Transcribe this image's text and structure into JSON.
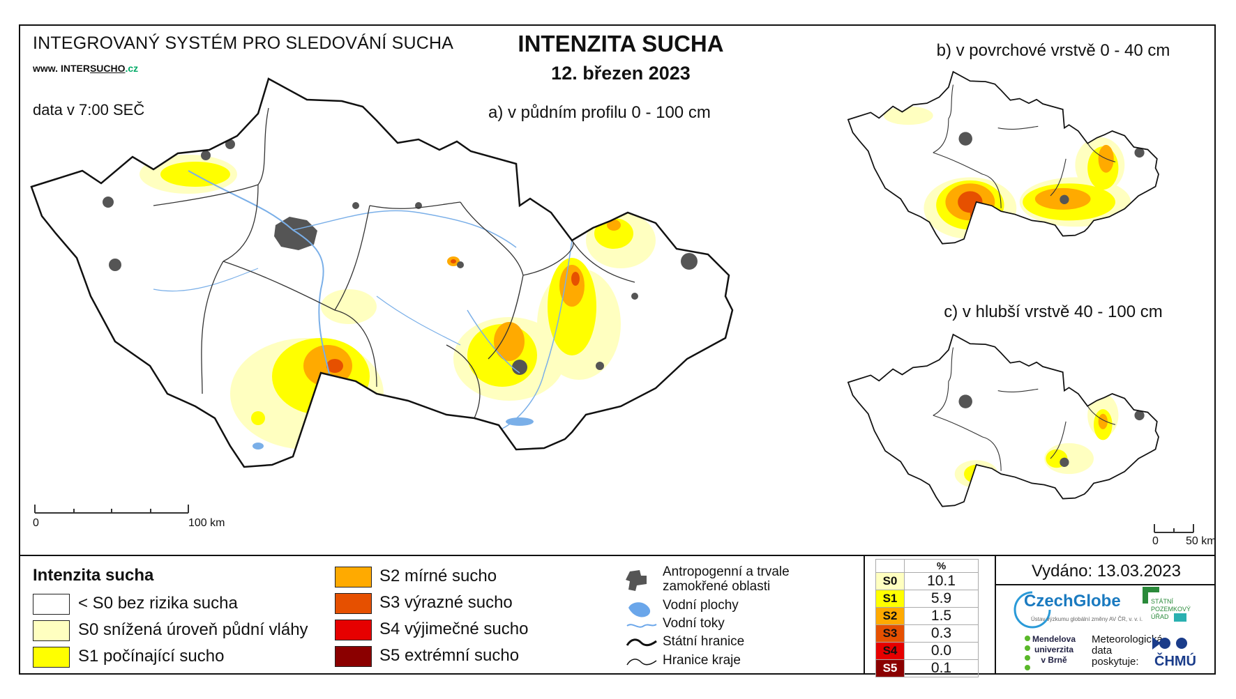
{
  "header": {
    "system_title": "INTEGROVANÝ SYSTÉM PRO SLEDOVÁNÍ SUCHA",
    "website_prefix": "www. ",
    "website_mid": "INTER",
    "website_under": "SUCHO",
    "website_tld": ".cz",
    "data_time": "data v 7:00 SEČ",
    "main_title": "INTENZITA SUCHA",
    "date": "12. březen 2023"
  },
  "maps": {
    "a_title": "a) v půdním profilu 0 - 100 cm",
    "b_title": "b) v povrchové vrstvě 0 - 40 cm",
    "c_title": "c) v hlubší vrstvě 40 - 100 cm",
    "scale_a": {
      "start": "0",
      "end": "100 km"
    },
    "scale_c": {
      "start": "0",
      "end": "50 km"
    }
  },
  "legend": {
    "title": "Intenzita sucha",
    "classes": [
      {
        "label": "< S0 bez rizika sucha",
        "color": "#ffffff"
      },
      {
        "label": "S0 snížená úroveň půdní vláhy",
        "color": "#ffffc0"
      },
      {
        "label": "S1 počínající sucho",
        "color": "#ffff00"
      },
      {
        "label": "S2 mírné sucho",
        "color": "#ffaa00"
      },
      {
        "label": "S3 výrazné sucho",
        "color": "#e65000"
      },
      {
        "label": "S4 výjimečné sucho",
        "color": "#e60000"
      },
      {
        "label": "S5 extrémní sucho",
        "color": "#8b0000"
      }
    ],
    "overlays": [
      {
        "label": "Antropogenní a trvale zamokřené oblasti",
        "icon": "urban-area-icon"
      },
      {
        "label": "Vodní plochy",
        "icon": "water-body-icon"
      },
      {
        "label": "Vodní toky",
        "icon": "river-icon"
      },
      {
        "label": "Státní hranice",
        "icon": "state-border-icon"
      },
      {
        "label": "Hranice kraje",
        "icon": "region-border-icon"
      }
    ]
  },
  "stats": {
    "header": "%",
    "rows": [
      {
        "code": "S0",
        "value": "10.1",
        "color": "#ffffc0"
      },
      {
        "code": "S1",
        "value": "5.9",
        "color": "#ffff00"
      },
      {
        "code": "S2",
        "value": "1.5",
        "color": "#ffaa00"
      },
      {
        "code": "S3",
        "value": "0.3",
        "color": "#e65000"
      },
      {
        "code": "S4",
        "value": "0.0",
        "color": "#e60000"
      },
      {
        "code": "S5",
        "value": "0.1",
        "color": "#8b0000"
      }
    ]
  },
  "footer": {
    "issued": "Vydáno: 13.03.2023",
    "czechglobe": "CzechGlobe",
    "czechglobe_sub": "Ústav výzkumu globální změny AV ČR, v. v. i.",
    "spu": "STÁTNÍ\nPOZEMKOVÝ\nÚŘAD",
    "mendel": "Mendelova\nuniverzita\nv Brně",
    "meteo": "Meteorologická\ndata\nposkytuje:",
    "chmu": "ČHMÚ"
  }
}
